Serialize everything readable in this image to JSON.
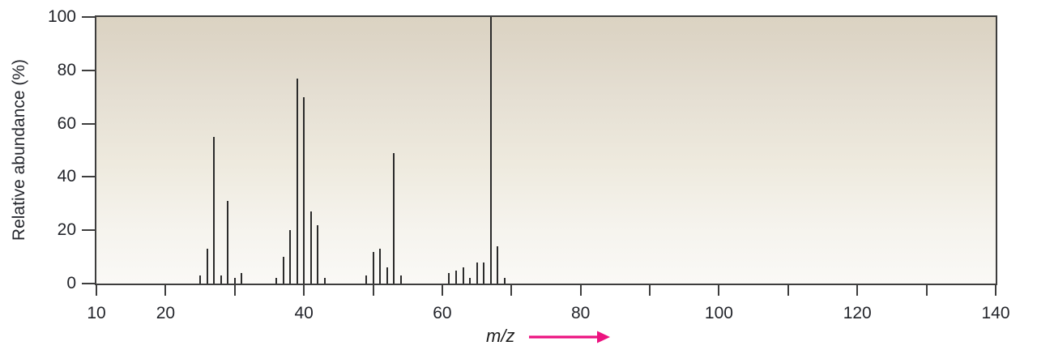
{
  "figure": {
    "y_axis_title": "Relative abundance (%)",
    "x_axis_title": "m/z"
  },
  "colors": {
    "bar": "#2b2b2b",
    "frame": "#3d3d3d",
    "text": "#23252b",
    "arrow": "#ec1380",
    "plot_bg_top": "#dbd3c2",
    "plot_bg_bottom": "#faf9f6"
  },
  "chart_data": {
    "type": "bar",
    "subtype": "mass-spectrum",
    "title": "",
    "xlabel": "m/z",
    "ylabel": "Relative abundance (%)",
    "xlim": [
      10,
      140
    ],
    "ylim": [
      0,
      100
    ],
    "grid": false,
    "legend": false,
    "x_tick_step_minor": 10,
    "x_tick_labels": [
      10,
      20,
      40,
      60,
      80,
      100,
      120,
      140
    ],
    "y_tick_labels": [
      0,
      20,
      40,
      60,
      80,
      100
    ],
    "peaks": [
      {
        "mz": 25,
        "intensity": 3
      },
      {
        "mz": 26,
        "intensity": 13
      },
      {
        "mz": 27,
        "intensity": 55
      },
      {
        "mz": 28,
        "intensity": 3
      },
      {
        "mz": 29,
        "intensity": 31
      },
      {
        "mz": 30,
        "intensity": 2
      },
      {
        "mz": 31,
        "intensity": 4
      },
      {
        "mz": 36,
        "intensity": 2
      },
      {
        "mz": 37,
        "intensity": 10
      },
      {
        "mz": 38,
        "intensity": 20
      },
      {
        "mz": 39,
        "intensity": 77
      },
      {
        "mz": 40,
        "intensity": 70
      },
      {
        "mz": 41,
        "intensity": 27
      },
      {
        "mz": 42,
        "intensity": 22
      },
      {
        "mz": 43,
        "intensity": 2
      },
      {
        "mz": 49,
        "intensity": 3
      },
      {
        "mz": 50,
        "intensity": 12
      },
      {
        "mz": 51,
        "intensity": 13
      },
      {
        "mz": 52,
        "intensity": 6
      },
      {
        "mz": 53,
        "intensity": 49
      },
      {
        "mz": 54,
        "intensity": 3
      },
      {
        "mz": 61,
        "intensity": 4
      },
      {
        "mz": 62,
        "intensity": 5
      },
      {
        "mz": 63,
        "intensity": 6
      },
      {
        "mz": 64,
        "intensity": 2
      },
      {
        "mz": 65,
        "intensity": 8
      },
      {
        "mz": 66,
        "intensity": 8
      },
      {
        "mz": 67,
        "intensity": 100
      },
      {
        "mz": 68,
        "intensity": 14
      },
      {
        "mz": 69,
        "intensity": 2
      }
    ]
  }
}
